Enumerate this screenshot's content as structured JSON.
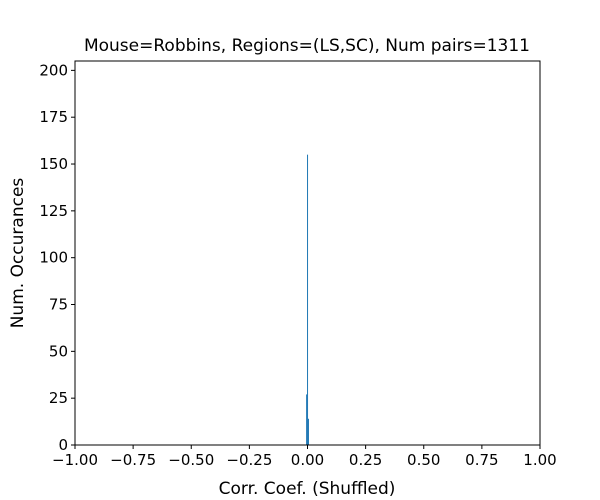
{
  "chart_data": {
    "type": "bar",
    "title": "Mouse=Robbins, Regions=(LS,SC), Num pairs=1311",
    "xlabel": "Corr. Coef. (Shuffled)",
    "ylabel": "Num. Occurances",
    "xlim": [
      -1.0,
      1.0
    ],
    "ylim": [
      0,
      205
    ],
    "grid": false,
    "bar_color": "#1f77b4",
    "x_ticks": [
      -1.0,
      -0.75,
      -0.5,
      -0.25,
      0.0,
      0.25,
      0.5,
      0.75,
      1.0
    ],
    "x_tick_labels": [
      "−1.00",
      "−0.75",
      "−0.50",
      "−0.25",
      "0.00",
      "0.25",
      "0.50",
      "0.75",
      "1.00"
    ],
    "y_ticks": [
      0,
      25,
      50,
      75,
      100,
      125,
      150,
      175,
      200
    ],
    "y_tick_labels": [
      "0",
      "25",
      "50",
      "75",
      "100",
      "125",
      "150",
      "175",
      "200"
    ],
    "bins": [
      {
        "x0": -0.006,
        "x1": -0.002,
        "count": 27
      },
      {
        "x0": -0.002,
        "x1": 0.002,
        "count": 155
      },
      {
        "x0": 0.002,
        "x1": 0.006,
        "count": 14
      }
    ]
  }
}
